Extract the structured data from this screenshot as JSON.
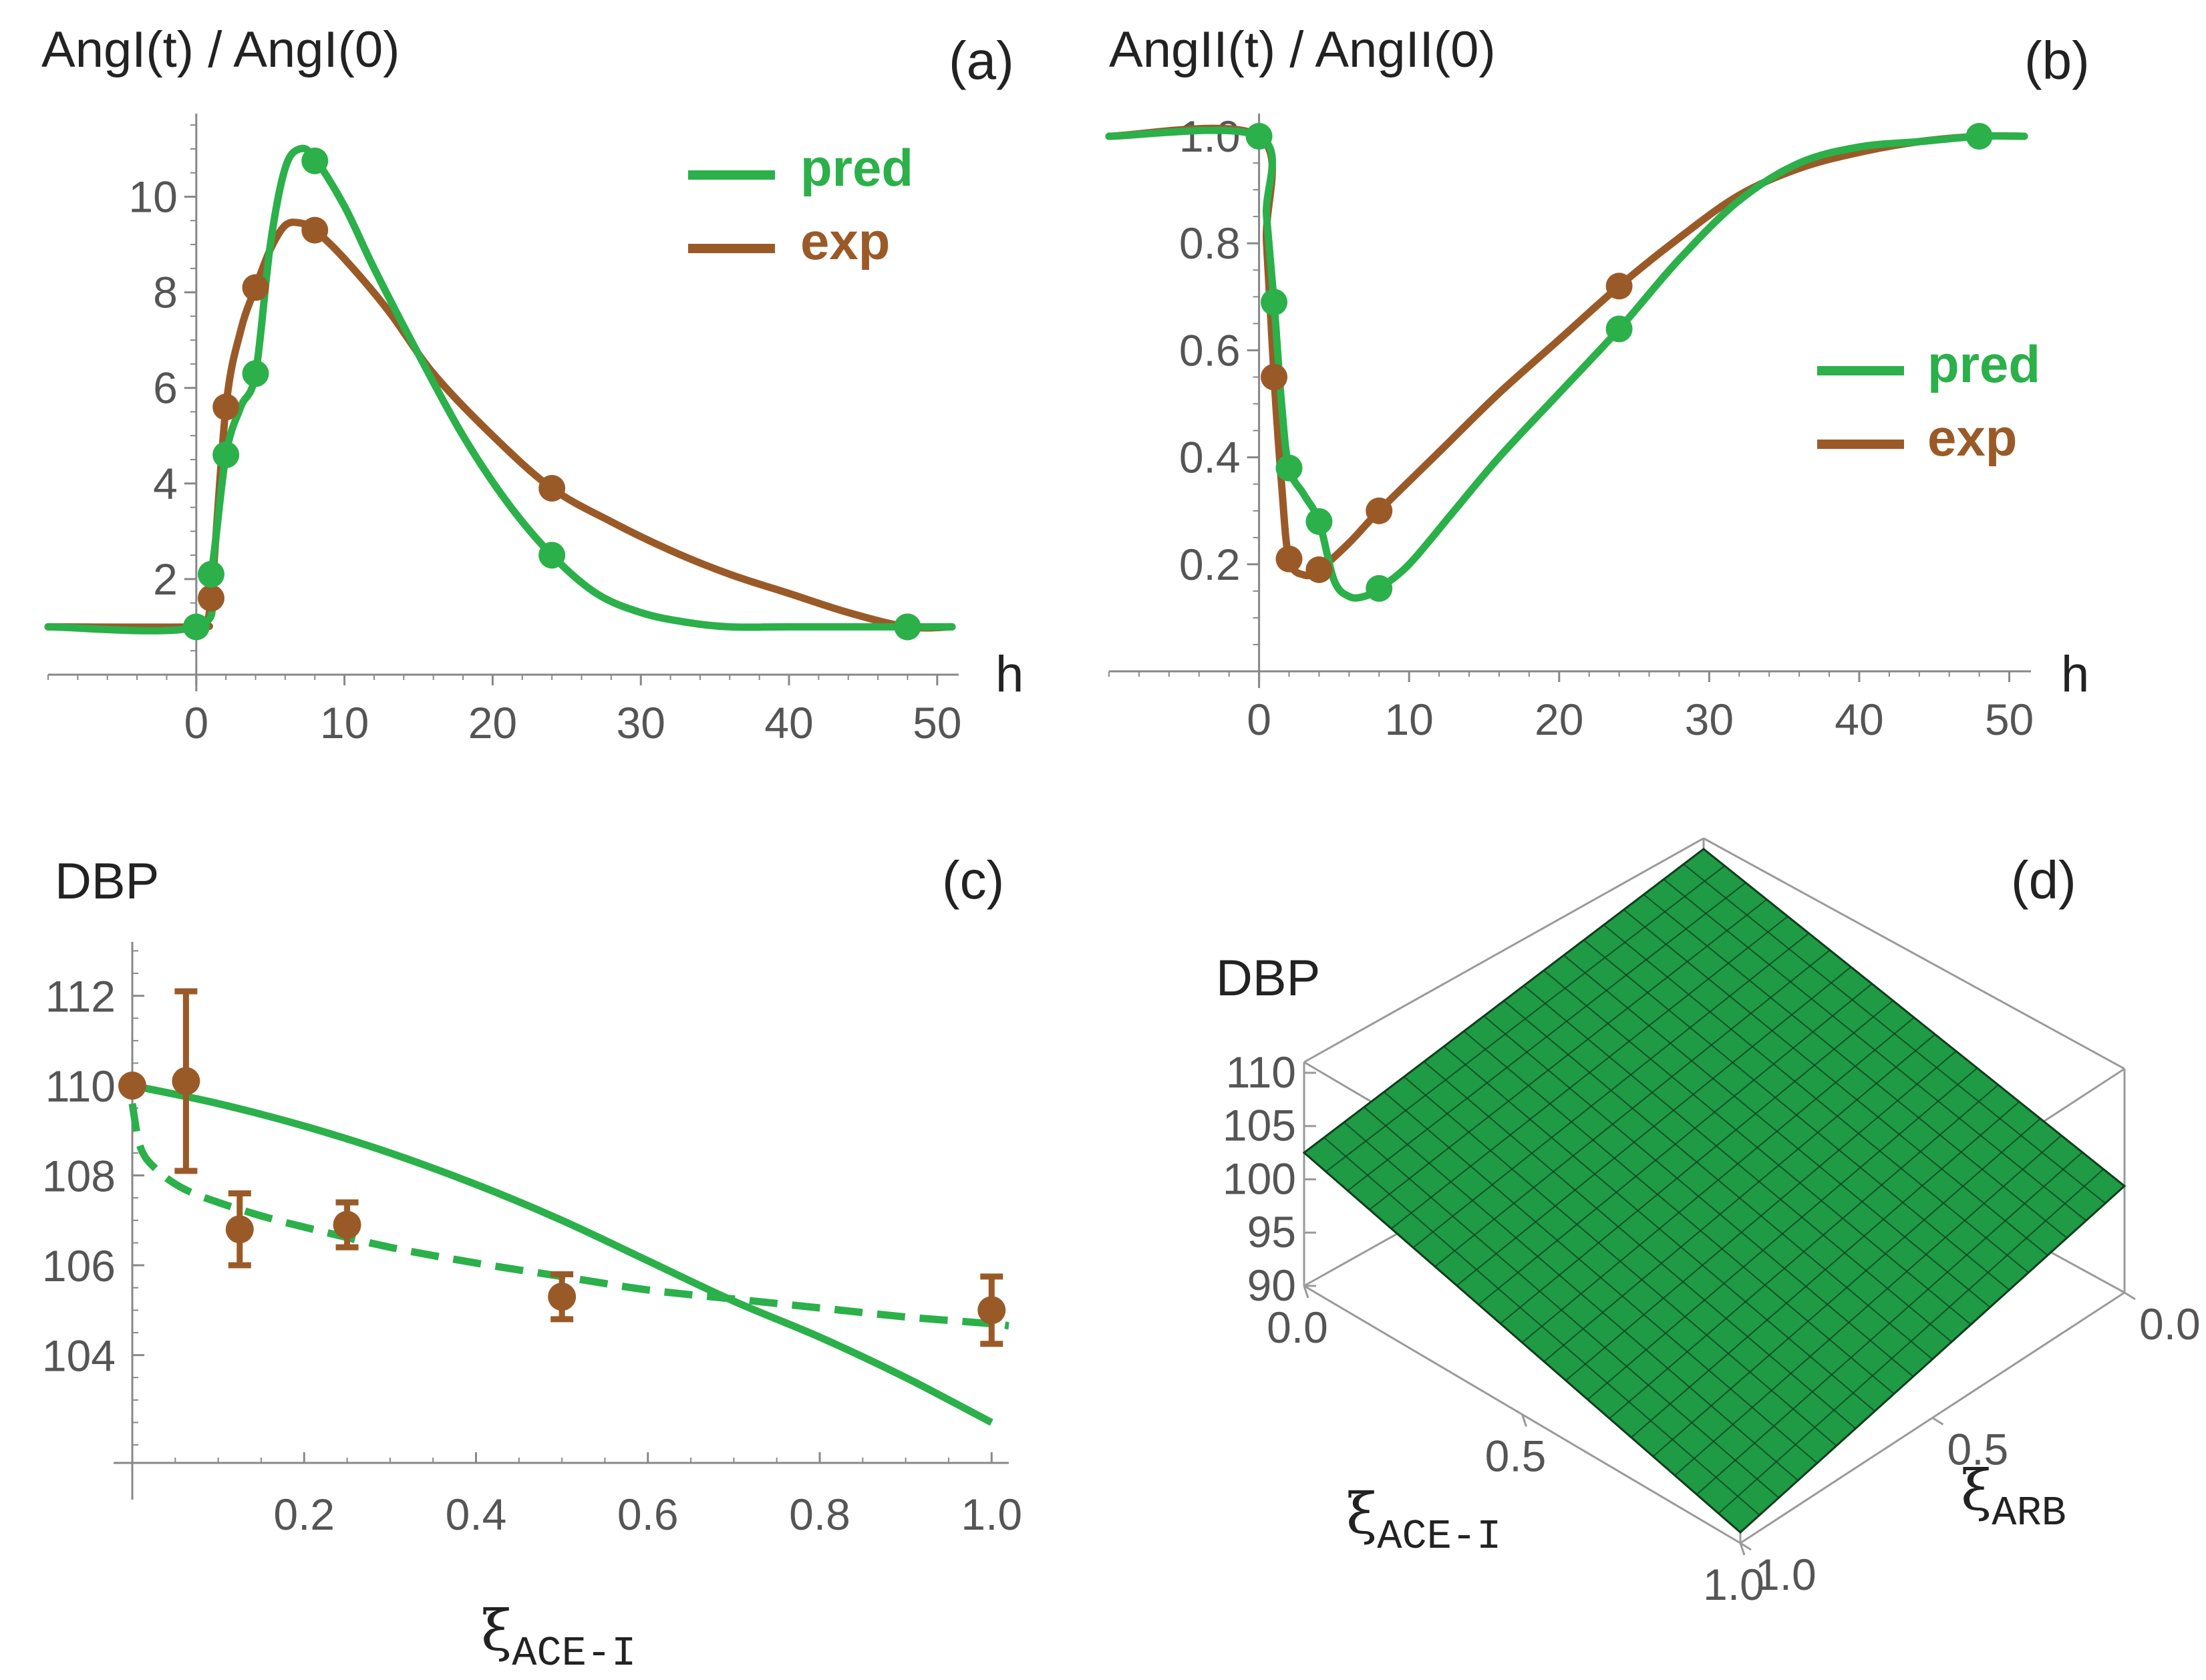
{
  "colors": {
    "pred": "#2bb04a",
    "exp": "#9a5a28",
    "axis": "#888888",
    "surface": "#1f9a45",
    "mesh": "#0e3d1c"
  },
  "chart_data": [
    {
      "panel": "(a)",
      "type": "line",
      "ylabel": "AngI(t) / AngI(0)",
      "xlabel": "h",
      "xlim": [
        -10,
        51
      ],
      "ylim": [
        0,
        11.6
      ],
      "xticks": [
        0,
        10,
        20,
        30,
        40,
        50
      ],
      "yticks": [
        2,
        4,
        6,
        8,
        10
      ],
      "legend": [
        "pred",
        "exp"
      ],
      "series": [
        {
          "name": "pred",
          "color": "#2bb04a",
          "curve": [
            [
              -10,
              1.0
            ],
            [
              0,
              1.0
            ],
            [
              1,
              2.1
            ],
            [
              2,
              4.6
            ],
            [
              3,
              5.6
            ],
            [
              4,
              6.3
            ],
            [
              5,
              9.0
            ],
            [
              6,
              10.6
            ],
            [
              7,
              11.0
            ],
            [
              8,
              10.8
            ],
            [
              10,
              9.8
            ],
            [
              12,
              8.5
            ],
            [
              15,
              6.7
            ],
            [
              18,
              5.0
            ],
            [
              21,
              3.6
            ],
            [
              24,
              2.5
            ],
            [
              27,
              1.7
            ],
            [
              30,
              1.3
            ],
            [
              33,
              1.1
            ],
            [
              36,
              1.0
            ],
            [
              40,
              1.0
            ],
            [
              48,
              1.0
            ],
            [
              51,
              1.0
            ]
          ],
          "points": [
            [
              0,
              1.0
            ],
            [
              1,
              2.1
            ],
            [
              2,
              4.6
            ],
            [
              4,
              6.3
            ],
            [
              8,
              10.75
            ],
            [
              24,
              2.5
            ],
            [
              48,
              1.0
            ]
          ]
        },
        {
          "name": "exp",
          "color": "#9a5a28",
          "curve": [
            [
              -10,
              1.0
            ],
            [
              0,
              1.0
            ],
            [
              0.5,
              1.1
            ],
            [
              1,
              1.6
            ],
            [
              2,
              5.6
            ],
            [
              3,
              7.2
            ],
            [
              4,
              8.1
            ],
            [
              5,
              8.9
            ],
            [
              6,
              9.4
            ],
            [
              7,
              9.45
            ],
            [
              8,
              9.3
            ],
            [
              10,
              8.7
            ],
            [
              13,
              7.6
            ],
            [
              16,
              6.3
            ],
            [
              20,
              5.0
            ],
            [
              24,
              3.9
            ],
            [
              28,
              3.2
            ],
            [
              32,
              2.6
            ],
            [
              36,
              2.1
            ],
            [
              40,
              1.7
            ],
            [
              44,
              1.3
            ],
            [
              48,
              1.0
            ],
            [
              51,
              1.0
            ]
          ],
          "points": [
            [
              1,
              1.6
            ],
            [
              2,
              5.6
            ],
            [
              4,
              8.1
            ],
            [
              8,
              9.3
            ],
            [
              24,
              3.9
            ],
            [
              48,
              1.0
            ]
          ]
        }
      ]
    },
    {
      "panel": "(b)",
      "type": "line",
      "ylabel": "AngII(t) / AngII(0)",
      "xlabel": "h",
      "xlim": [
        -10,
        51
      ],
      "ylim": [
        0,
        1.03
      ],
      "xticks": [
        0,
        10,
        20,
        30,
        40,
        50
      ],
      "yticks": [
        0.2,
        0.4,
        0.6,
        0.8,
        1.0
      ],
      "legend": [
        "pred",
        "exp"
      ],
      "series": [
        {
          "name": "pred",
          "color": "#2bb04a",
          "curve": [
            [
              -10,
              1.0
            ],
            [
              0,
              1.0
            ],
            [
              0.5,
              0.85
            ],
            [
              1,
              0.69
            ],
            [
              1.5,
              0.5
            ],
            [
              2,
              0.38
            ],
            [
              3,
              0.33
            ],
            [
              4,
              0.28
            ],
            [
              5,
              0.17
            ],
            [
              6,
              0.14
            ],
            [
              7,
              0.14
            ],
            [
              8,
              0.155
            ],
            [
              10,
              0.2
            ],
            [
              13,
              0.3
            ],
            [
              16,
              0.4
            ],
            [
              20,
              0.52
            ],
            [
              24,
              0.64
            ],
            [
              28,
              0.77
            ],
            [
              32,
              0.88
            ],
            [
              36,
              0.95
            ],
            [
              40,
              0.98
            ],
            [
              44,
              0.99
            ],
            [
              48,
              1.0
            ],
            [
              51,
              1.0
            ]
          ],
          "points": [
            [
              0,
              1.0
            ],
            [
              1,
              0.69
            ],
            [
              2,
              0.38
            ],
            [
              4,
              0.28
            ],
            [
              8,
              0.155
            ],
            [
              24,
              0.64
            ],
            [
              48,
              1.0
            ]
          ]
        },
        {
          "name": "exp",
          "color": "#9a5a28",
          "curve": [
            [
              -10,
              1.0
            ],
            [
              0,
              1.0
            ],
            [
              0.5,
              0.8
            ],
            [
              1,
              0.55
            ],
            [
              1.5,
              0.35
            ],
            [
              2,
              0.21
            ],
            [
              3,
              0.18
            ],
            [
              4,
              0.19
            ],
            [
              6,
              0.24
            ],
            [
              8,
              0.3
            ],
            [
              12,
              0.41
            ],
            [
              16,
              0.52
            ],
            [
              20,
              0.62
            ],
            [
              24,
              0.72
            ],
            [
              28,
              0.81
            ],
            [
              32,
              0.89
            ],
            [
              36,
              0.94
            ],
            [
              40,
              0.97
            ],
            [
              44,
              0.99
            ],
            [
              48,
              1.0
            ],
            [
              51,
              1.0
            ]
          ],
          "points": [
            [
              1,
              0.55
            ],
            [
              2,
              0.21
            ],
            [
              4,
              0.19
            ],
            [
              8,
              0.3
            ],
            [
              24,
              0.72
            ]
          ]
        }
      ]
    },
    {
      "panel": "(c)",
      "type": "line",
      "ylabel": "DBP",
      "xlabel": "ξ",
      "xlabel_sub": "ACE-I",
      "xlim": [
        0,
        1.02
      ],
      "ylim": [
        101.6,
        113.2
      ],
      "xticks": [
        0.2,
        0.4,
        0.6,
        0.8,
        1.0
      ],
      "yticks": [
        104,
        106,
        108,
        110,
        112
      ],
      "series": [
        {
          "name": "",
          "style": "solid",
          "color": "#2bb04a",
          "curve": [
            [
              0,
              110.0
            ],
            [
              0.1,
              109.6
            ],
            [
              0.2,
              109.1
            ],
            [
              0.3,
              108.5
            ],
            [
              0.4,
              107.8
            ],
            [
              0.5,
              107.0
            ],
            [
              0.6,
              106.1
            ],
            [
              0.7,
              105.2
            ],
            [
              0.8,
              104.4
            ],
            [
              0.9,
              103.5
            ],
            [
              1.0,
              102.5
            ]
          ]
        },
        {
          "name": "",
          "style": "dashed",
          "color": "#2bb04a",
          "curve": [
            [
              0,
              109.6
            ],
            [
              0.01,
              108.6
            ],
            [
              0.03,
              108.1
            ],
            [
              0.06,
              107.7
            ],
            [
              0.1,
              107.4
            ],
            [
              0.15,
              107.1
            ],
            [
              0.2,
              106.85
            ],
            [
              0.3,
              106.4
            ],
            [
              0.4,
              106.05
            ],
            [
              0.5,
              105.75
            ],
            [
              0.6,
              105.45
            ],
            [
              0.7,
              105.25
            ],
            [
              0.8,
              105.05
            ],
            [
              0.9,
              104.85
            ],
            [
              1.0,
              104.7
            ],
            [
              1.02,
              104.65
            ]
          ]
        },
        {
          "name": "",
          "style": "errorbar",
          "color": "#9a5a28",
          "points": [
            [
              0,
              110.0,
              0
            ],
            [
              0.0625,
              110.1,
              2.0
            ],
            [
              0.125,
              106.8,
              0.8
            ],
            [
              0.25,
              106.9,
              0.5
            ],
            [
              0.5,
              105.3,
              0.5
            ],
            [
              1.0,
              105.0,
              0.75
            ]
          ]
        }
      ]
    },
    {
      "panel": "(d)",
      "type": "surface3d",
      "zlabel": "DBP",
      "xlabel": "ξ",
      "xlabel_sub": "ACE-I",
      "ylabel": "ξ",
      "ylabel_sub": "ARB",
      "zticks": [
        90,
        95,
        100,
        105,
        110
      ],
      "xticks": [
        "0.0",
        "0.5",
        "1.0"
      ],
      "yticks": [
        "0.0",
        "0.5",
        "1.0"
      ],
      "surface": {
        "corners": {
          "ace0_arb0": 110,
          "ace0_arb1": 102.5,
          "ace1_arb0": 100,
          "ace1_arb1": 91
        },
        "grid": 20
      }
    }
  ],
  "panel_labels": {
    "a": "(a)",
    "b": "(b)",
    "c": "(c)",
    "d": "(d)"
  },
  "titles": {
    "a": "AngI(t) / AngI(0)",
    "b": "AngII(t) / AngII(0)",
    "c": "DBP",
    "d": "DBP"
  },
  "axis_units": {
    "a": "h",
    "b": "h"
  },
  "legend": {
    "pred": "pred",
    "exp": "exp"
  },
  "ticks": {
    "a_x": [
      "0",
      "10",
      "20",
      "30",
      "40",
      "50"
    ],
    "a_y": [
      "2",
      "4",
      "6",
      "8",
      "10"
    ],
    "b_x": [
      "0",
      "10",
      "20",
      "30",
      "40",
      "50"
    ],
    "b_y": [
      "0.2",
      "0.4",
      "0.6",
      "0.8",
      "1.0"
    ],
    "c_x": [
      "0.2",
      "0.4",
      "0.6",
      "0.8",
      "1.0"
    ],
    "c_y": [
      "104",
      "106",
      "108",
      "110",
      "112"
    ],
    "d_z": [
      "110",
      "105",
      "100",
      "95",
      "90"
    ],
    "d_x": [
      "0.0",
      "0.5",
      "1.0"
    ],
    "d_y": [
      "0.0",
      "0.5",
      "1.0"
    ]
  },
  "xi_symbol": "ξ",
  "subscripts": {
    "ace": "ACE-I",
    "arb": "ARB"
  }
}
